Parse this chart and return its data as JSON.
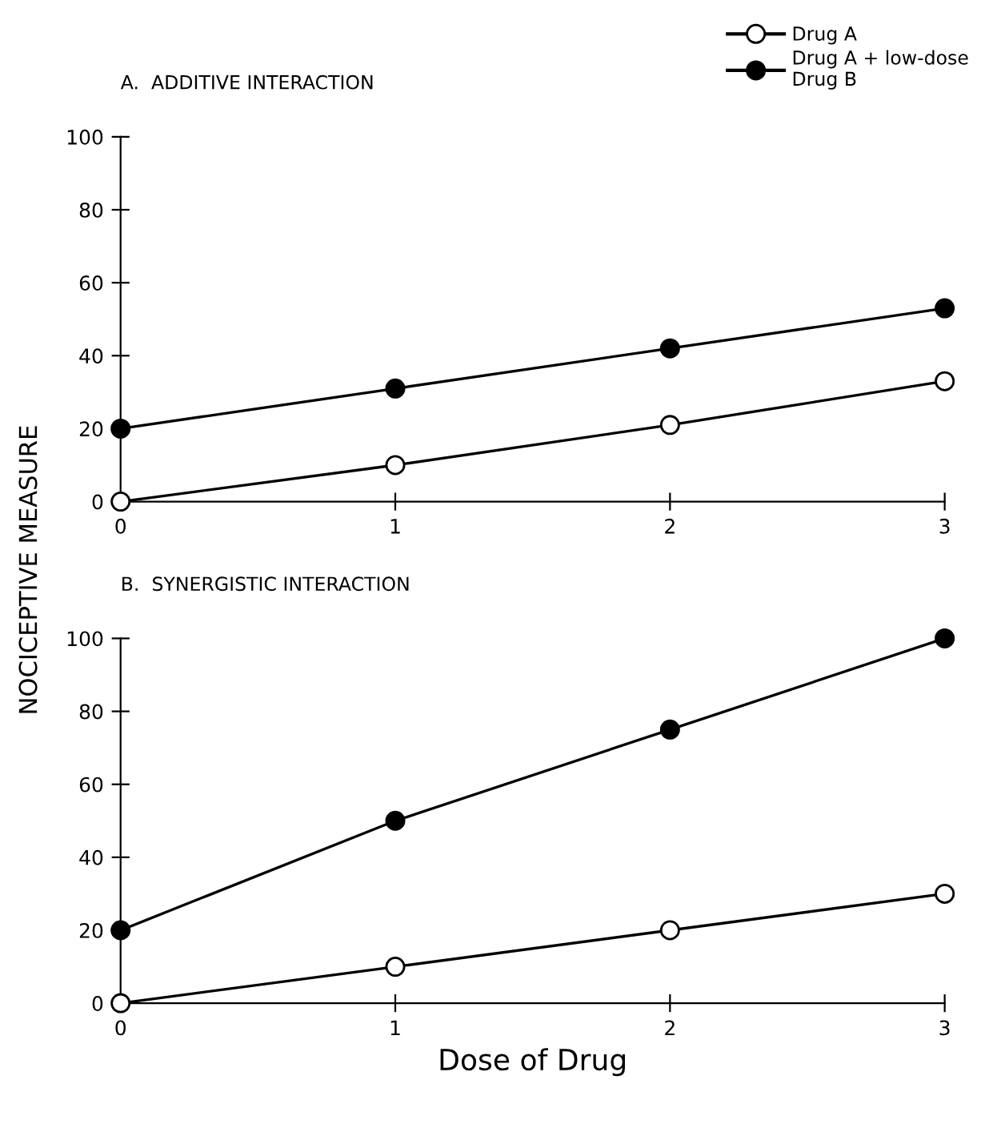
{
  "chart_data": [
    {
      "type": "line",
      "title": "A.  ADDITIVE INTERACTION",
      "ylabel": "NOCICEPTIVE MEASURE",
      "x": [
        0,
        1,
        2,
        3
      ],
      "xlim": [
        0,
        3
      ],
      "xticks": [
        0,
        1,
        2,
        3
      ],
      "ylim": [
        0,
        100
      ],
      "yticks": [
        0,
        20,
        40,
        60,
        80,
        100
      ],
      "legend": "top right",
      "grid": false,
      "marker": "circle",
      "line_style": "solid",
      "series": [
        {
          "name": "Drug A",
          "color": "#ffffff",
          "values": [
            0,
            10,
            21,
            33
          ]
        },
        {
          "name": "Drug A + low-dose\nDrug B",
          "color": "#000000",
          "values": [
            20,
            31,
            42,
            53
          ]
        }
      ]
    },
    {
      "type": "line",
      "title": "B.  SYNERGISTIC INTERACTION",
      "xlabel": "Dose of Drug",
      "x": [
        0,
        1,
        2,
        3
      ],
      "xlim": [
        0,
        3
      ],
      "xticks": [
        0,
        1,
        2,
        3
      ],
      "ylim": [
        0,
        100
      ],
      "yticks": [
        0,
        20,
        40,
        60,
        80,
        100
      ],
      "grid": false,
      "marker": "circle",
      "line_style": "solid",
      "series": [
        {
          "color": "#ffffff",
          "values": [
            0,
            10,
            20,
            30
          ]
        },
        {
          "color": "#000000",
          "values": [
            20,
            50,
            75,
            100
          ]
        }
      ]
    }
  ]
}
